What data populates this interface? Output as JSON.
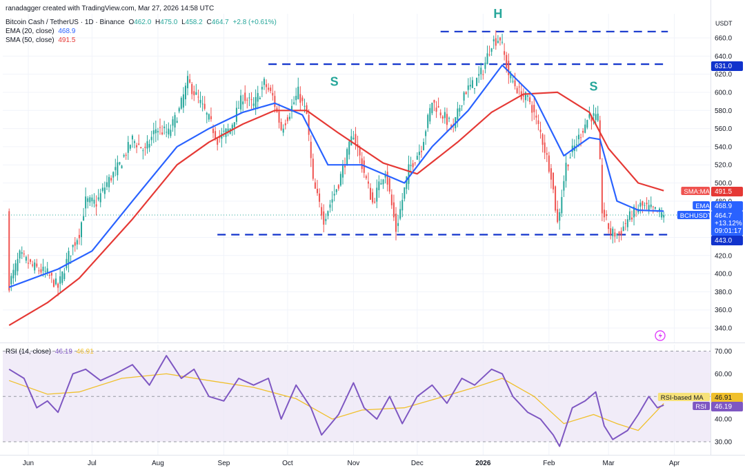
{
  "header": {
    "credit": "ranadagger created with TradingView.com, Mar 27, 2026 14:58 UTC",
    "symbol": "Bitcoin Cash / TetherUS · 1D · Binance",
    "ohlc": {
      "o_label": "O",
      "o": "462.0",
      "h_label": "H",
      "h": "475.0",
      "l_label": "L",
      "l": "458.2",
      "c_label": "C",
      "c": "464.7",
      "chg": "+2.8 (+0.61%)"
    },
    "ema": {
      "label": "EMA (20, close)",
      "value": "468.9"
    },
    "sma": {
      "label": "SMA (50, close)",
      "value": "491.5"
    },
    "rsi": {
      "label": "RSI (14, close)",
      "value": "46.19",
      "ma_value": "46.91"
    }
  },
  "colors": {
    "up": "#26a69a",
    "down": "#ef5350",
    "ema": "#2962ff",
    "sma": "#e53935",
    "rsi": "#7e57c2",
    "rsi_ma": "#f0c02c",
    "dash": "#1133cc",
    "pattern": "#26a69a",
    "rsi_band": "#ede7f6"
  },
  "currency": "USDT",
  "chart_data": [
    {
      "type": "candlestick",
      "title": "Bitcoin Cash / TetherUS · 1D · Binance",
      "x_tick_labels": [
        "Jun",
        "Jul",
        "Aug",
        "Sep",
        "Oct",
        "Nov",
        "Dec",
        "2026",
        "Feb",
        "Mar",
        "Apr"
      ],
      "y_ticks": [
        340,
        360,
        380,
        400,
        420,
        440,
        460,
        480,
        500,
        520,
        540,
        560,
        580,
        600,
        620,
        640,
        660
      ],
      "ylim": [
        325,
        672
      ],
      "price_path": [
        [
          "2025-05-23",
          388
        ],
        [
          "2025-05-28",
          420
        ],
        [
          "2025-06-03",
          408
        ],
        [
          "2025-06-10",
          400
        ],
        [
          "2025-06-15",
          385
        ],
        [
          "2025-06-20",
          420
        ],
        [
          "2025-06-25",
          445
        ],
        [
          "2025-06-28",
          480
        ],
        [
          "2025-07-03",
          478
        ],
        [
          "2025-07-08",
          500
        ],
        [
          "2025-07-14",
          520
        ],
        [
          "2025-07-20",
          548
        ],
        [
          "2025-07-26",
          535
        ],
        [
          "2025-07-31",
          560
        ],
        [
          "2025-08-06",
          555
        ],
        [
          "2025-08-11",
          580
        ],
        [
          "2025-08-15",
          612
        ],
        [
          "2025-08-20",
          592
        ],
        [
          "2025-08-25",
          570
        ],
        [
          "2025-08-29",
          548
        ],
        [
          "2025-09-04",
          560
        ],
        [
          "2025-09-10",
          596
        ],
        [
          "2025-09-15",
          585
        ],
        [
          "2025-09-20",
          610
        ],
        [
          "2025-09-24",
          595
        ],
        [
          "2025-09-28",
          560
        ],
        [
          "2025-10-02",
          578
        ],
        [
          "2025-10-06",
          600
        ],
        [
          "2025-10-10",
          575
        ],
        [
          "2025-10-13",
          500
        ],
        [
          "2025-10-18",
          460
        ],
        [
          "2025-10-25",
          500
        ],
        [
          "2025-11-01",
          555
        ],
        [
          "2025-11-05",
          520
        ],
        [
          "2025-11-10",
          478
        ],
        [
          "2025-11-16",
          515
        ],
        [
          "2025-11-21",
          448
        ],
        [
          "2025-11-27",
          515
        ],
        [
          "2025-12-03",
          540
        ],
        [
          "2025-12-08",
          590
        ],
        [
          "2025-12-13",
          575
        ],
        [
          "2025-12-18",
          560
        ],
        [
          "2025-12-23",
          600
        ],
        [
          "2025-12-28",
          610
        ],
        [
          "2026-01-01",
          625
        ],
        [
          "2026-01-05",
          655
        ],
        [
          "2026-01-09",
          660
        ],
        [
          "2026-01-13",
          620
        ],
        [
          "2026-01-18",
          600
        ],
        [
          "2026-01-23",
          590
        ],
        [
          "2026-01-28",
          555
        ],
        [
          "2026-02-02",
          510
        ],
        [
          "2026-02-05",
          455
        ],
        [
          "2026-02-09",
          520
        ],
        [
          "2026-02-14",
          545
        ],
        [
          "2026-02-20",
          575
        ],
        [
          "2026-02-24",
          570
        ],
        [
          "2026-02-26",
          470
        ],
        [
          "2026-03-02",
          445
        ],
        [
          "2026-03-06",
          443
        ],
        [
          "2026-03-10",
          460
        ],
        [
          "2026-03-16",
          475
        ],
        [
          "2026-03-22",
          470
        ],
        [
          "2026-03-27",
          464.7
        ]
      ],
      "ema_path": [
        [
          "2025-05-23",
          385
        ],
        [
          "2025-06-15",
          405
        ],
        [
          "2025-07-01",
          425
        ],
        [
          "2025-07-20",
          480
        ],
        [
          "2025-08-10",
          540
        ],
        [
          "2025-08-25",
          560
        ],
        [
          "2025-09-10",
          578
        ],
        [
          "2025-09-25",
          588
        ],
        [
          "2025-10-08",
          575
        ],
        [
          "2025-10-20",
          520
        ],
        [
          "2025-11-05",
          520
        ],
        [
          "2025-11-25",
          500
        ],
        [
          "2025-12-08",
          540
        ],
        [
          "2025-12-25",
          580
        ],
        [
          "2026-01-10",
          630
        ],
        [
          "2026-01-25",
          595
        ],
        [
          "2026-02-08",
          530
        ],
        [
          "2026-02-20",
          550
        ],
        [
          "2026-02-25",
          548
        ],
        [
          "2026-03-05",
          480
        ],
        [
          "2026-03-15",
          470
        ],
        [
          "2026-03-27",
          468.9
        ]
      ],
      "sma_path": [
        [
          "2025-05-23",
          343
        ],
        [
          "2025-06-10",
          368
        ],
        [
          "2025-06-25",
          395
        ],
        [
          "2025-07-20",
          460
        ],
        [
          "2025-08-10",
          520
        ],
        [
          "2025-08-25",
          545
        ],
        [
          "2025-09-10",
          565
        ],
        [
          "2025-09-25",
          580
        ],
        [
          "2025-10-10",
          580
        ],
        [
          "2025-10-25",
          555
        ],
        [
          "2025-11-15",
          522
        ],
        [
          "2025-12-01",
          510
        ],
        [
          "2025-12-20",
          545
        ],
        [
          "2026-01-05",
          578
        ],
        [
          "2026-01-20",
          598
        ],
        [
          "2026-02-05",
          600
        ],
        [
          "2026-02-20",
          578
        ],
        [
          "2026-03-01",
          538
        ],
        [
          "2026-03-15",
          500
        ],
        [
          "2026-03-27",
          491.5
        ]
      ],
      "levels": [
        {
          "label": "631.0",
          "value": 631,
          "from": "2025-09-22",
          "to": "2026-03-27"
        },
        {
          "label": "443.0",
          "value": 443,
          "from": "2025-08-29",
          "to": "2026-03-27"
        },
        {
          "label": "",
          "value": 667,
          "from": "2025-12-12",
          "to": "2026-03-27"
        }
      ],
      "pattern_labels": [
        {
          "text": "S",
          "x": "2025-10-23",
          "y": 607
        },
        {
          "text": "H",
          "x": "2026-01-08",
          "y": 682
        },
        {
          "text": "S",
          "x": "2026-02-22",
          "y": 602
        }
      ],
      "price_labels": [
        {
          "text": "SMA:MA",
          "value": "491.5"
        },
        {
          "text": "EMA",
          "value": "468.9"
        },
        {
          "text": "BCHUSDT",
          "value": "464.7",
          "change": "+13.12%",
          "timer": "09:01:17"
        }
      ]
    },
    {
      "type": "line",
      "title": "RSI (14, close)",
      "y_ticks": [
        30,
        40,
        50,
        60,
        70
      ],
      "ylim": [
        26,
        72
      ],
      "band": [
        30,
        70
      ],
      "midline": 50,
      "series": [
        {
          "name": "RSI",
          "values": [
            [
              "2025-05-23",
              62
            ],
            [
              "2025-05-30",
              58
            ],
            [
              "2025-06-05",
              45
            ],
            [
              "2025-06-10",
              48
            ],
            [
              "2025-06-15",
              43
            ],
            [
              "2025-06-22",
              60
            ],
            [
              "2025-06-28",
              62
            ],
            [
              "2025-07-05",
              57
            ],
            [
              "2025-07-12",
              60
            ],
            [
              "2025-07-20",
              64
            ],
            [
              "2025-07-28",
              55
            ],
            [
              "2025-08-05",
              68
            ],
            [
              "2025-08-12",
              58
            ],
            [
              "2025-08-18",
              62
            ],
            [
              "2025-08-25",
              50
            ],
            [
              "2025-09-01",
              48
            ],
            [
              "2025-09-08",
              58
            ],
            [
              "2025-09-15",
              55
            ],
            [
              "2025-09-22",
              58
            ],
            [
              "2025-09-28",
              40
            ],
            [
              "2025-10-05",
              55
            ],
            [
              "2025-10-12",
              45
            ],
            [
              "2025-10-17",
              33
            ],
            [
              "2025-10-25",
              42
            ],
            [
              "2025-11-01",
              56
            ],
            [
              "2025-11-06",
              45
            ],
            [
              "2025-11-12",
              40
            ],
            [
              "2025-11-18",
              50
            ],
            [
              "2025-11-24",
              38
            ],
            [
              "2025-12-01",
              50
            ],
            [
              "2025-12-08",
              55
            ],
            [
              "2025-12-15",
              47
            ],
            [
              "2025-12-22",
              58
            ],
            [
              "2025-12-28",
              55
            ],
            [
              "2026-01-05",
              62
            ],
            [
              "2026-01-10",
              60
            ],
            [
              "2026-01-15",
              50
            ],
            [
              "2026-01-22",
              43
            ],
            [
              "2026-01-28",
              40
            ],
            [
              "2026-02-03",
              33
            ],
            [
              "2026-02-06",
              28
            ],
            [
              "2026-02-12",
              45
            ],
            [
              "2026-02-18",
              48
            ],
            [
              "2026-02-23",
              52
            ],
            [
              "2026-02-27",
              37
            ],
            [
              "2026-03-03",
              31
            ],
            [
              "2026-03-10",
              35
            ],
            [
              "2026-03-15",
              42
            ],
            [
              "2026-03-20",
              50
            ],
            [
              "2026-03-24",
              45
            ],
            [
              "2026-03-27",
              46.19
            ]
          ]
        },
        {
          "name": "RSI-based MA",
          "values": [
            [
              "2025-05-23",
              57
            ],
            [
              "2025-06-10",
              51
            ],
            [
              "2025-06-25",
              52
            ],
            [
              "2025-07-15",
              58
            ],
            [
              "2025-08-05",
              60
            ],
            [
              "2025-08-25",
              57
            ],
            [
              "2025-09-15",
              54
            ],
            [
              "2025-10-05",
              49
            ],
            [
              "2025-10-22",
              40
            ],
            [
              "2025-11-05",
              44
            ],
            [
              "2025-11-25",
              45
            ],
            [
              "2025-12-10",
              49
            ],
            [
              "2025-12-28",
              54
            ],
            [
              "2026-01-10",
              58
            ],
            [
              "2026-01-25",
              50
            ],
            [
              "2026-02-08",
              38
            ],
            [
              "2026-02-22",
              42
            ],
            [
              "2026-03-05",
              38
            ],
            [
              "2026-03-15",
              35
            ],
            [
              "2026-03-27",
              46.91
            ]
          ]
        }
      ],
      "price_labels": [
        {
          "text": "RSI-based MA",
          "value": "46.91"
        },
        {
          "text": "RSI",
          "value": "46.19"
        }
      ]
    }
  ]
}
